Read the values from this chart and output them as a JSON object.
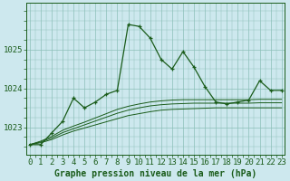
{
  "title": "Graphe pression niveau de la mer (hPa)",
  "bg_color": "#cde8ee",
  "grid_color": "#8bbfb8",
  "line_color": "#1a5c1a",
  "hours": [
    0,
    1,
    2,
    3,
    4,
    5,
    6,
    7,
    8,
    9,
    10,
    11,
    12,
    13,
    14,
    15,
    16,
    17,
    18,
    19,
    20,
    21,
    22,
    23
  ],
  "main_line": [
    1022.55,
    1022.55,
    1022.85,
    1023.15,
    1023.75,
    1023.5,
    1023.65,
    1023.85,
    1023.95,
    1025.65,
    1025.6,
    1025.3,
    1024.75,
    1024.5,
    1024.95,
    1024.55,
    1024.05,
    1023.65,
    1023.6,
    1023.65,
    1023.7,
    1024.2,
    1023.95,
    1023.95
  ],
  "smooth_lines": [
    [
      1022.55,
      1022.6,
      1022.68,
      1022.8,
      1022.9,
      1022.98,
      1023.06,
      1023.14,
      1023.22,
      1023.3,
      1023.35,
      1023.4,
      1023.44,
      1023.46,
      1023.47,
      1023.48,
      1023.49,
      1023.5,
      1023.5,
      1023.5,
      1023.5,
      1023.5,
      1023.5,
      1023.5
    ],
    [
      1022.55,
      1022.62,
      1022.72,
      1022.86,
      1022.96,
      1023.06,
      1023.16,
      1023.26,
      1023.36,
      1023.44,
      1023.5,
      1023.55,
      1023.58,
      1023.6,
      1023.61,
      1023.62,
      1023.62,
      1023.62,
      1023.62,
      1023.62,
      1023.62,
      1023.63,
      1023.63,
      1023.63
    ],
    [
      1022.55,
      1022.64,
      1022.76,
      1022.92,
      1023.03,
      1023.13,
      1023.24,
      1023.35,
      1023.46,
      1023.54,
      1023.6,
      1023.65,
      1023.68,
      1023.7,
      1023.71,
      1023.71,
      1023.71,
      1023.71,
      1023.71,
      1023.71,
      1023.71,
      1023.72,
      1023.72,
      1023.72
    ]
  ],
  "ylim": [
    1022.3,
    1026.2
  ],
  "yticks": [
    1023,
    1024,
    1025
  ],
  "tick_fontsize": 6.5,
  "title_fontsize": 7.0,
  "figsize": [
    3.2,
    2.0
  ],
  "dpi": 100
}
